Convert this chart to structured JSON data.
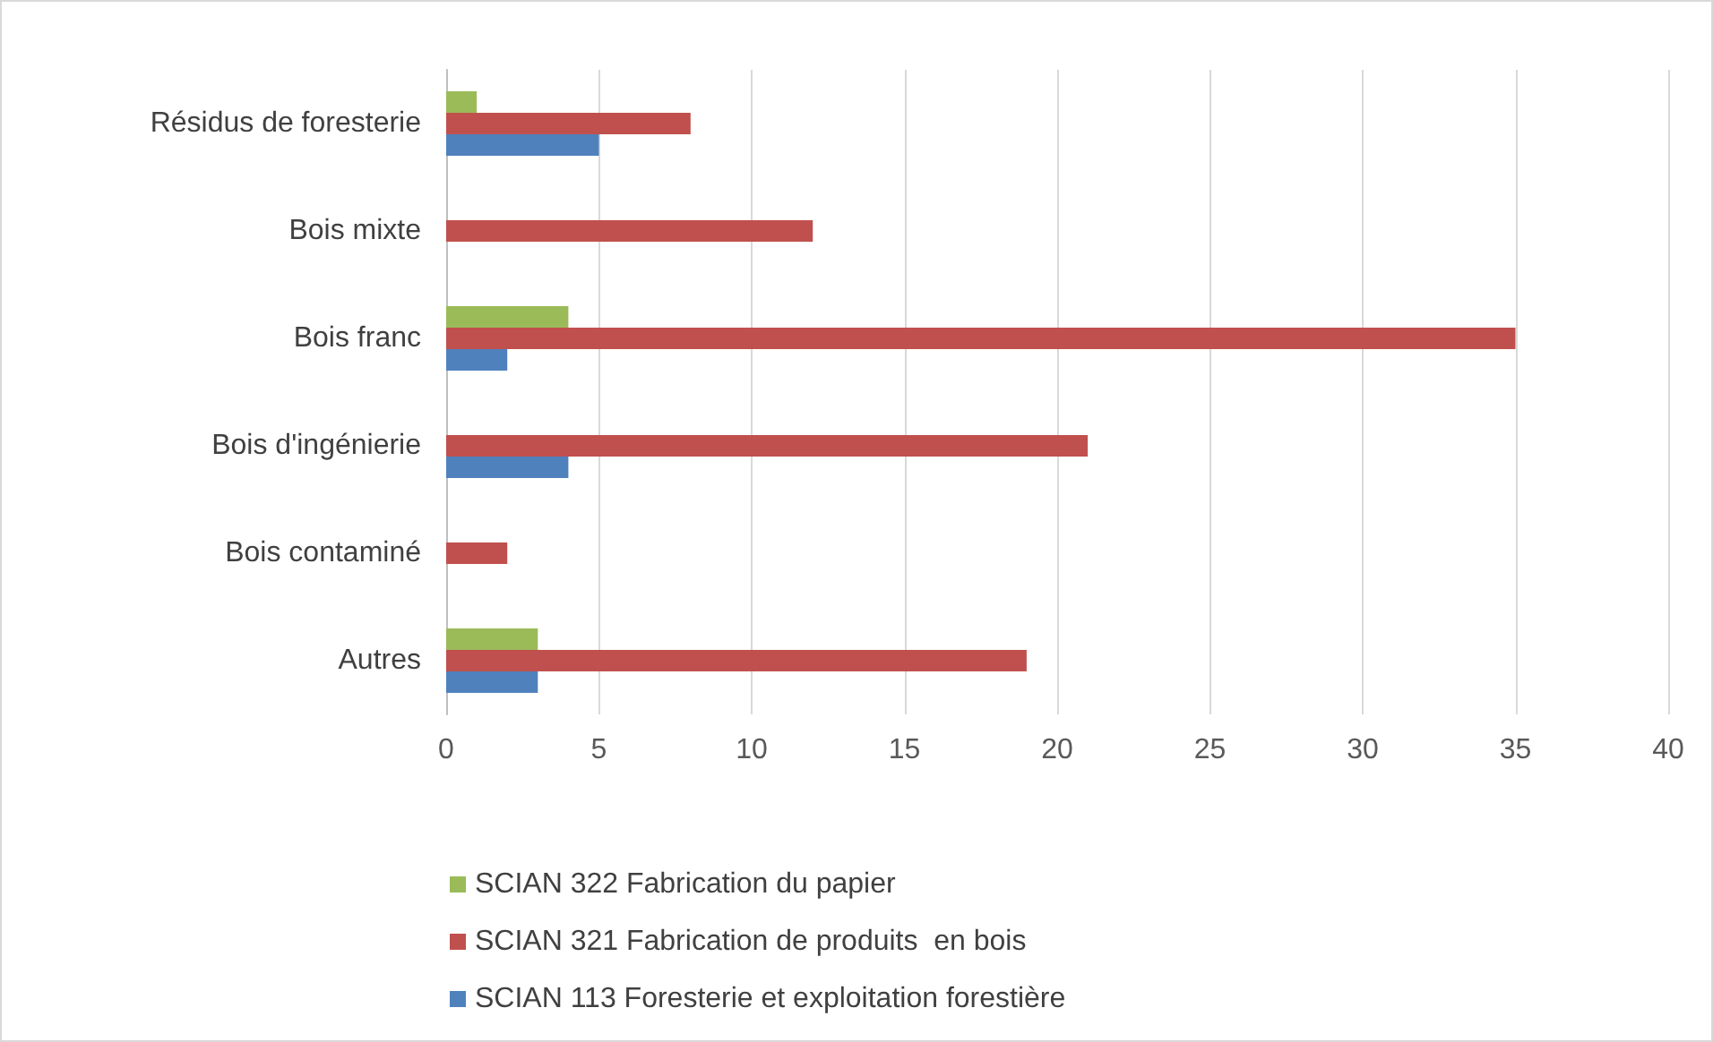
{
  "chart_data": {
    "type": "bar",
    "orientation": "horizontal",
    "categories": [
      "Résidus de foresterie",
      "Bois mixte",
      "Bois franc",
      "Bois d'ingénierie",
      "Bois contaminé",
      "Autres"
    ],
    "series": [
      {
        "name": "SCIAN 322 Fabrication du papier",
        "color": "#9bbb59",
        "values": [
          1,
          0,
          4,
          0,
          0,
          3
        ]
      },
      {
        "name": "SCIAN 321 Fabrication de produits  en bois",
        "color": "#c0504d",
        "values": [
          8,
          12,
          35,
          21,
          2,
          19
        ]
      },
      {
        "name": "SCIAN 113 Foresterie et exploitation forestière",
        "color": "#4f81bd",
        "values": [
          5,
          0,
          2,
          4,
          0,
          3
        ]
      }
    ],
    "xlim": [
      0,
      40
    ],
    "xticks": [
      0,
      5,
      10,
      15,
      20,
      25,
      30,
      35,
      40
    ],
    "grid": "x",
    "legend": "bottom"
  }
}
